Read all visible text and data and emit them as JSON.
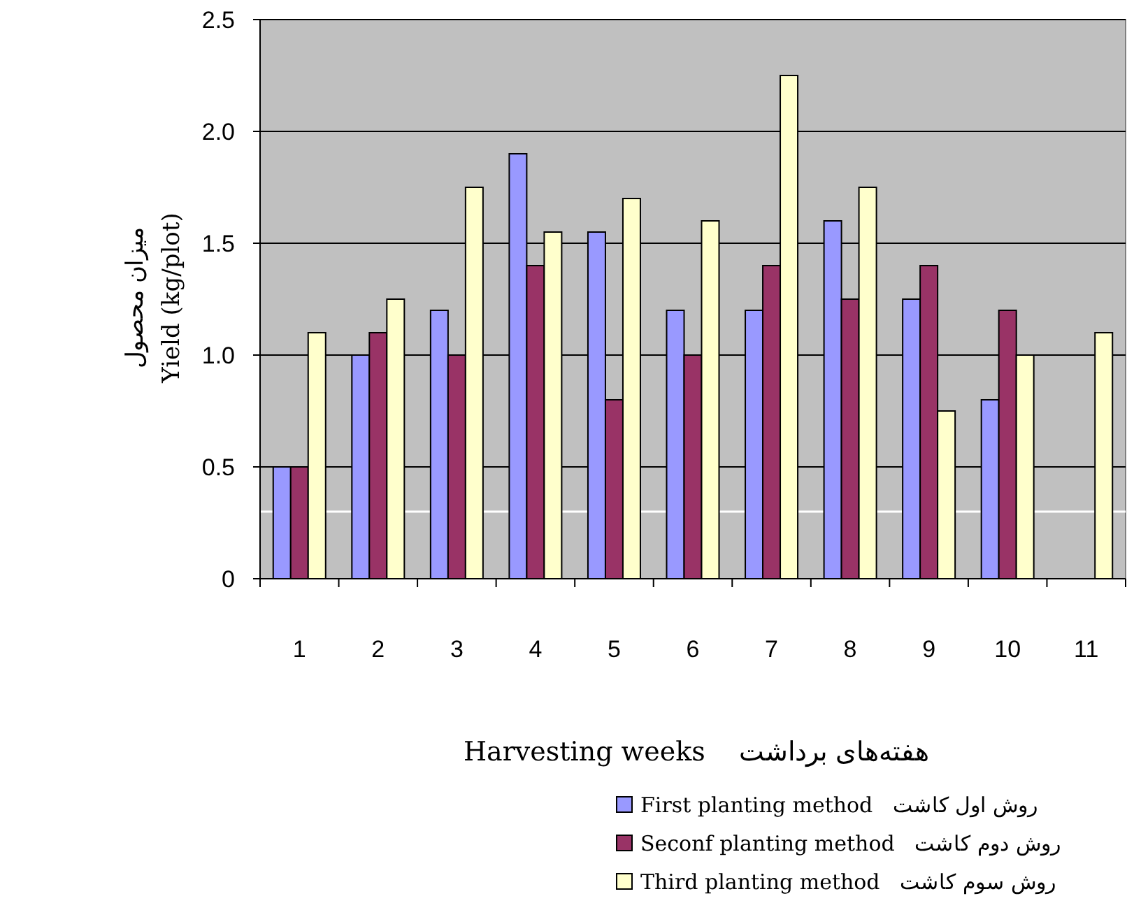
{
  "chart_data": {
    "type": "bar",
    "xlabel": "Harvesting weeks    هفته‌های برداشت",
    "ylabel": "میزان محصول\nYield (kg/plot)",
    "categories": [
      "1",
      "2",
      "3",
      "4",
      "5",
      "6",
      "7",
      "8",
      "9",
      "10",
      "11"
    ],
    "series": [
      {
        "name": "First planting method   روش اول کاشت",
        "color": "#9999ff",
        "values": [
          0.5,
          1.0,
          1.2,
          1.9,
          1.55,
          1.2,
          1.2,
          1.6,
          1.25,
          0.8,
          null
        ]
      },
      {
        "name": "Seconf planting method   روش دوم کاشت",
        "color": "#993366",
        "values": [
          0.5,
          1.1,
          1.0,
          1.4,
          0.8,
          1.0,
          1.4,
          1.25,
          1.4,
          1.2,
          null
        ]
      },
      {
        "name": "Third planting method   روش سوم کاشت",
        "color": "#ffffcc",
        "values": [
          1.1,
          1.25,
          1.75,
          1.55,
          1.7,
          1.6,
          2.25,
          1.75,
          0.75,
          1.0,
          1.1
        ]
      }
    ],
    "ylim": [
      0,
      2.5
    ],
    "yticks": [
      0,
      {
        "value": 0.5,
        "label": "0.5"
      },
      {
        "value": 1,
        "label": "1.0"
      },
      {
        "value": 1.5,
        "label": "1.5"
      },
      {
        "value": 2,
        "label": "2.0"
      },
      {
        "value": 2.5,
        "label": "2.5"
      }
    ],
    "grid": "y",
    "legend": "bottom",
    "ref_lines": [
      {
        "axis": "y",
        "value": 0.3,
        "color": "#ffffff"
      }
    ]
  }
}
